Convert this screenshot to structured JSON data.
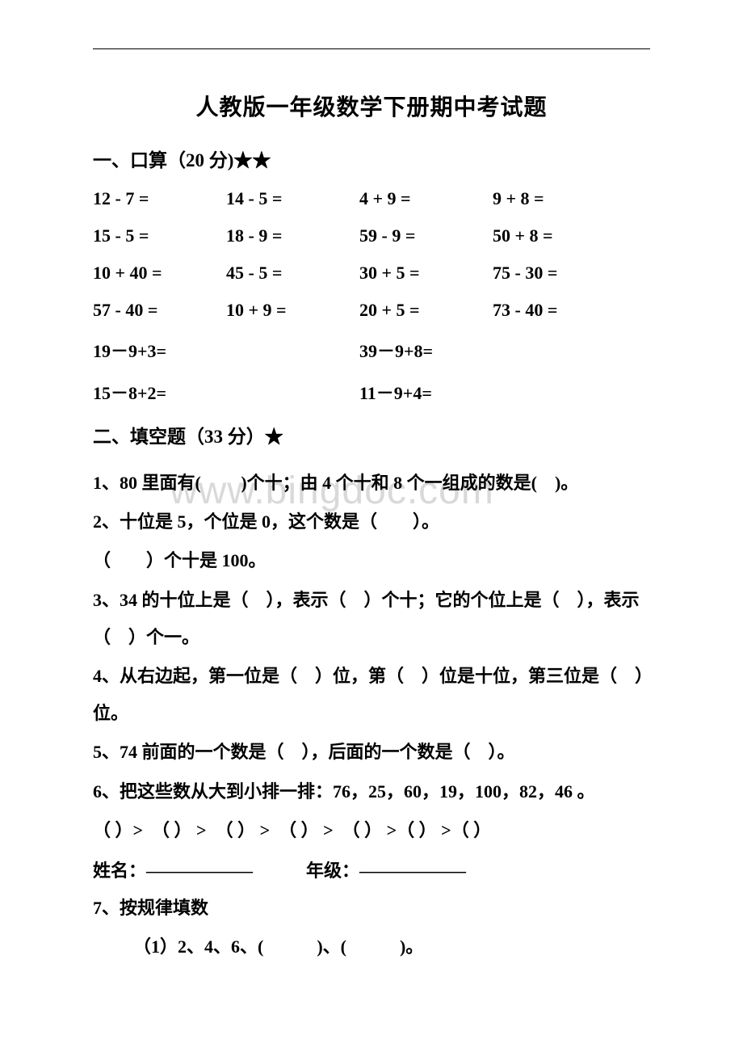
{
  "watermark": "www.bingdoc.com",
  "title": "人教版一年级数学下册期中考试题",
  "section1": {
    "header": "一、口算（20 分)★★",
    "rows": [
      [
        "12 - 7 =",
        "14 - 5 =",
        "4 + 9 =",
        "9 + 8 ="
      ],
      [
        "15 - 5 =",
        "18 - 9 =",
        "59 - 9 =",
        "50 + 8 ="
      ],
      [
        "10 + 40 =",
        "45 - 5 =",
        "30 + 5 =",
        "75 - 30 ="
      ],
      [
        "57 - 40 =",
        "10 + 9 =",
        "20 + 5 =",
        "73 - 40 ="
      ]
    ],
    "wide_rows": [
      [
        " 19－9+3=",
        " 39－9+8="
      ],
      [
        "15－8+2=",
        "11－9+4="
      ]
    ]
  },
  "section2": {
    "header": "二、填空题（33 分）★",
    "q1": "1、80 里面有(　 　)个十；由 4 个十和 8 个一组成的数是(　)。",
    "q2a": "2、十位是 5，个位是 0，这个数是（　　）。",
    "q2b": "（　　）个十是 100。",
    "q3": "3、34 的十位上是（　），表示（　）个十；它的个位上是（　），表示（　）个一。",
    "q4": "4、从右边起，第一位是（　）位，第（　）位是十位，第三位是（　）位。",
    "q5": "5、74 前面的一个数是（　），后面的一个数是（　）。",
    "q6a": " 6、把这些数从大到小排一排：76，25，60，19，100，82，46 。",
    "q6b": "（ ）>　（ ） >　（ ） >　（ ） >　（ ） >（ ） >（ ）",
    "name_line": "姓名：——————　　　年级：——————",
    "q7": "7、按规律填数",
    "q7_1": "（1）2、4、6、(　　　)、(　　　)。"
  }
}
